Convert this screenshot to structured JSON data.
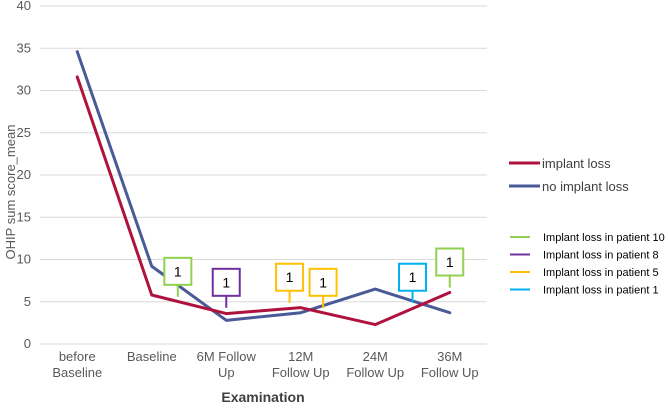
{
  "chart_data": {
    "type": "line",
    "xlabel": "Examination",
    "ylabel": "OHIP sum score_mean",
    "ylim": [
      0,
      40
    ],
    "yticks": [
      0,
      5,
      10,
      15,
      20,
      25,
      30,
      35,
      40
    ],
    "grid": "horizontal",
    "legend_position": "right",
    "categories": [
      [
        "before",
        "Baseline"
      ],
      [
        "Baseline"
      ],
      [
        "6M Follow",
        "Up"
      ],
      [
        "12M",
        "Follow Up"
      ],
      [
        "24M",
        "Follow Up"
      ],
      [
        "36M",
        "Follow Up"
      ]
    ],
    "series": [
      {
        "name": "implant loss",
        "color": "#b0123e",
        "values": [
          31.6,
          5.8,
          3.6,
          4.3,
          2.3,
          6.1
        ]
      },
      {
        "name": "no implant loss",
        "color": "#4a5a97",
        "values": [
          34.6,
          9.2,
          2.8,
          3.7,
          6.5,
          3.7
        ]
      }
    ],
    "annotations": [
      {
        "category_index": 1.35,
        "y": 8.6,
        "text": "1",
        "color": "#92d050"
      },
      {
        "category_index": 2.0,
        "y": 7.3,
        "text": "1",
        "color": "#7030a0"
      },
      {
        "category_index": 2.85,
        "y": 7.9,
        "text": "1",
        "color": "#ffc000"
      },
      {
        "category_index": 3.3,
        "y": 7.3,
        "text": "1",
        "color": "#ffc000"
      },
      {
        "category_index": 4.5,
        "y": 7.9,
        "text": "1",
        "color": "#00b0f0"
      },
      {
        "category_index": 5.0,
        "y": 9.7,
        "text": "1",
        "color": "#92d050"
      }
    ],
    "patient_legend": [
      {
        "label": "Implant loss in patient 10",
        "color": "#92d050"
      },
      {
        "label": "Implant loss in patient 8",
        "color": "#7030a0"
      },
      {
        "label": "Implant loss in patient 5",
        "color": "#ffc000"
      },
      {
        "label": "Implant loss in patient 1",
        "color": "#00b0f0"
      }
    ]
  }
}
